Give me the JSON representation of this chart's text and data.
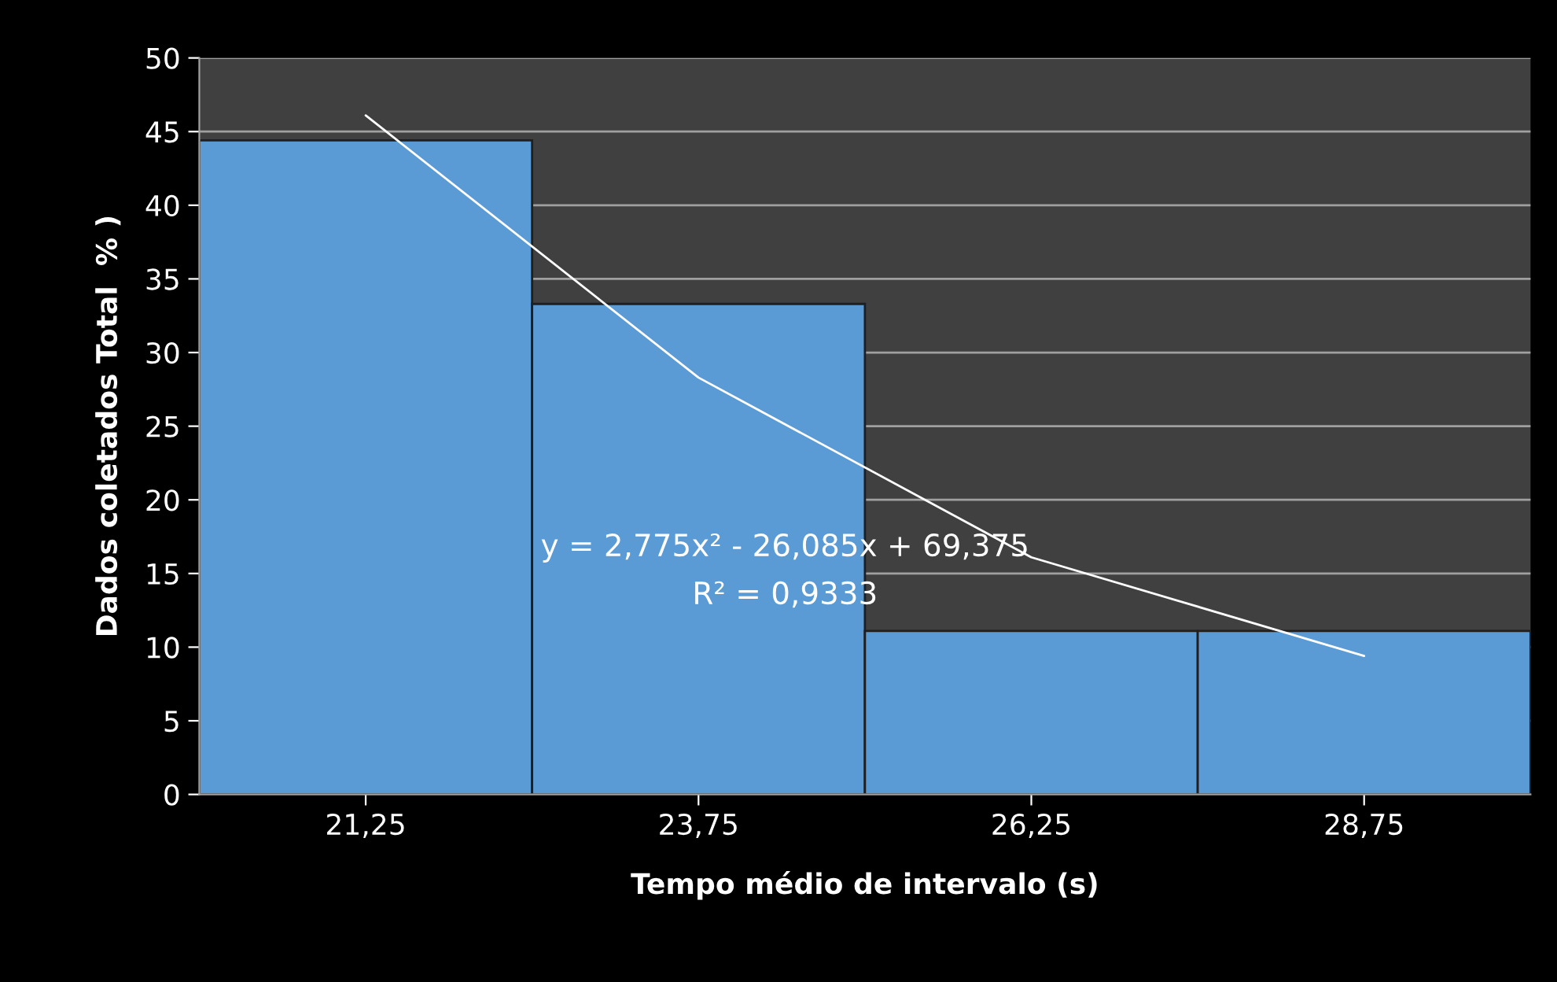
{
  "chart_data": {
    "type": "bar",
    "xlabel": "Tempo médio de intervalo (s)",
    "ylabel": "Dados coletados Total  % )",
    "categories": [
      "21,25",
      "23,75",
      "26,25",
      "28,75"
    ],
    "series": [
      {
        "color": "#5b9bd5",
        "values": [
          44.4,
          33.3,
          11.1,
          11.1
        ]
      },
      {
        "type": "line",
        "color": "#ffffff",
        "x": [
          "21,25",
          "23,75",
          "26,25",
          "28,75"
        ],
        "values": [
          46.1,
          28.3,
          16.1,
          9.4
        ],
        "marker": "none",
        "line_style": "solid"
      }
    ],
    "ylim": [
      0,
      50
    ],
    "yticks": [
      0,
      5,
      10,
      15,
      20,
      25,
      30,
      35,
      40,
      45,
      50
    ],
    "grid": "y",
    "legend": false,
    "annotations": [
      "y = 2,775x² - 26,085x + 69,375",
      "R² = 0,9333"
    ]
  }
}
